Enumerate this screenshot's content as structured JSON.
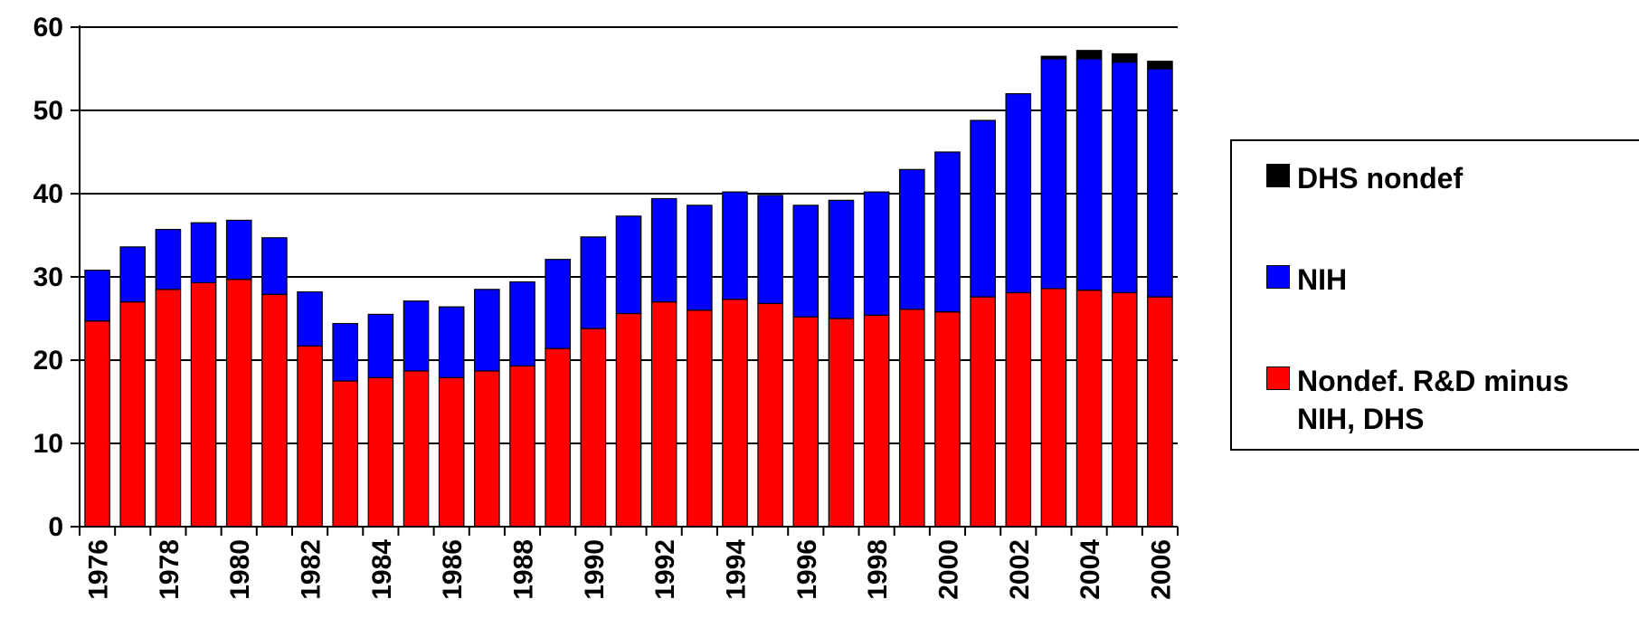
{
  "chart_data": {
    "type": "bar",
    "stacked": true,
    "title": "",
    "xlabel": "",
    "ylabel": "",
    "ylim": [
      0,
      60
    ],
    "yticks": [
      0,
      10,
      20,
      30,
      40,
      50,
      60
    ],
    "grid": true,
    "legend_position": "right",
    "categories": [
      "1976",
      "1977",
      "1978",
      "1979",
      "1980",
      "1981",
      "1982",
      "1983",
      "1984",
      "1985",
      "1986",
      "1987",
      "1988",
      "1989",
      "1990",
      "1991",
      "1992",
      "1993",
      "1994",
      "1995",
      "1996",
      "1997",
      "1998",
      "1999",
      "2000",
      "2001",
      "2002",
      "2003",
      "2004",
      "2005",
      "2006"
    ],
    "xtick_labels": [
      "1976",
      "1978",
      "1980",
      "1982",
      "1984",
      "1986",
      "1988",
      "1990",
      "1992",
      "1994",
      "1996",
      "1998",
      "2000",
      "2002",
      "2004",
      "2006"
    ],
    "series": [
      {
        "name": "Nondef. R&D minus NIH, DHS",
        "color": "#ff0000",
        "values": [
          24.7,
          27.0,
          28.5,
          29.3,
          29.7,
          27.9,
          21.7,
          17.5,
          17.9,
          18.7,
          17.9,
          18.7,
          19.3,
          21.4,
          23.8,
          25.6,
          27.0,
          26.0,
          27.3,
          26.8,
          25.2,
          25.0,
          25.4,
          26.1,
          25.8,
          27.6,
          28.1,
          28.6,
          28.4,
          28.1,
          27.6
        ]
      },
      {
        "name": "NIH",
        "color": "#0000ff",
        "values": [
          6.1,
          6.6,
          7.2,
          7.2,
          7.1,
          6.8,
          6.5,
          6.9,
          7.6,
          8.4,
          8.5,
          9.8,
          10.1,
          10.7,
          11.0,
          11.7,
          12.4,
          12.6,
          12.9,
          13.0,
          13.4,
          14.2,
          14.8,
          16.8,
          19.2,
          21.2,
          23.9,
          27.6,
          27.8,
          27.7,
          27.4
        ]
      },
      {
        "name": "DHS nondef",
        "color": "#000000",
        "values": [
          0,
          0,
          0,
          0,
          0,
          0,
          0,
          0,
          0,
          0,
          0,
          0,
          0,
          0,
          0,
          0,
          0,
          0,
          0,
          0,
          0,
          0,
          0,
          0,
          0,
          0,
          0,
          0.3,
          1.0,
          1.0,
          0.9
        ]
      }
    ],
    "legend": [
      {
        "label": "DHS nondef",
        "color": "#000000"
      },
      {
        "label": "NIH",
        "color": "#0000ff"
      },
      {
        "label": "Nondef. R&D minus\nNIH, DHS",
        "color": "#ff0000"
      }
    ]
  }
}
